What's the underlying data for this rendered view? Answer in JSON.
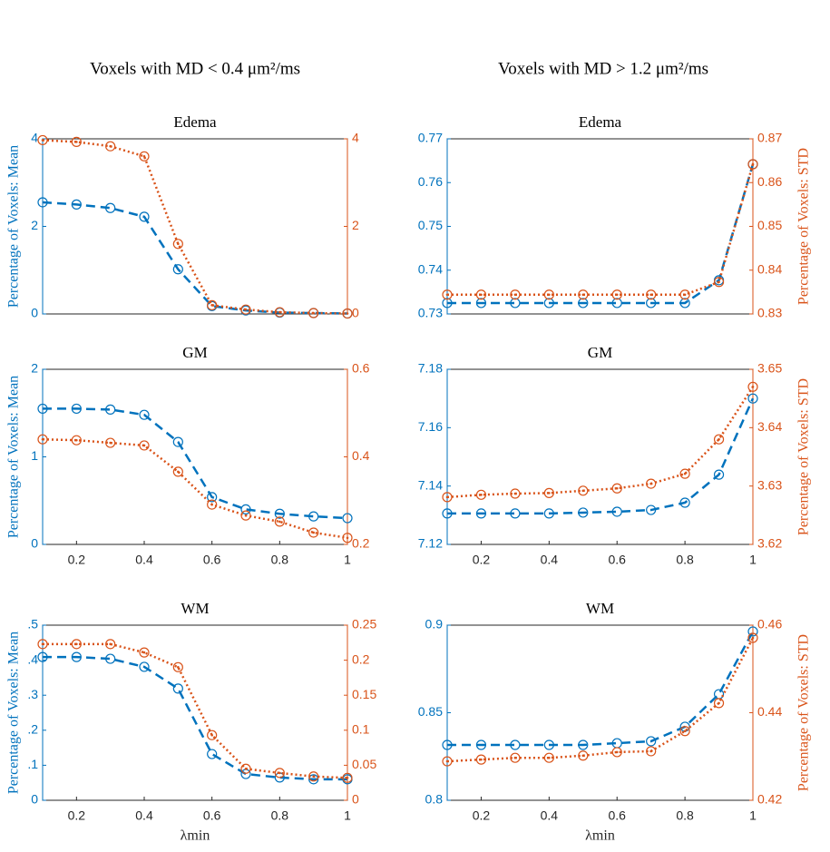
{
  "column_titles": [
    "Voxels with MD < 0.4 μm²/ms",
    "Voxels with MD > 1.2 μm²/ms"
  ],
  "chart_data": [
    {
      "type": "line",
      "title": "Edema",
      "ylabel": "Percentage of Voxels: Mean",
      "x": [
        0.1,
        0.2,
        0.3,
        0.4,
        0.5,
        0.6,
        0.7,
        0.8,
        0.9,
        1
      ],
      "xlim": [
        0.1,
        1
      ],
      "ylim": [
        0,
        4
      ],
      "yticks": [
        0,
        2,
        4
      ],
      "y2lim": [
        0,
        4
      ],
      "y2ticks": [
        0,
        2,
        4
      ],
      "series": [
        {
          "color": "#0072BD",
          "style": "dashed",
          "values": [
            2.55,
            2.5,
            2.42,
            2.22,
            1.02,
            0.18,
            0.08,
            0.03,
            0.02,
            0.01
          ]
        },
        {
          "color": "#D95319",
          "style": "dotted",
          "axis": "y2",
          "values": [
            3.97,
            3.93,
            3.83,
            3.6,
            1.6,
            0.2,
            0.1,
            0.04,
            0.02,
            0.01
          ]
        }
      ]
    },
    {
      "type": "line",
      "title": "Edema",
      "y2label": "Percentage of Voxels: STD",
      "x": [
        0.1,
        0.2,
        0.3,
        0.4,
        0.5,
        0.6,
        0.7,
        0.8,
        0.9,
        1
      ],
      "xlim": [
        0.1,
        1
      ],
      "ylim": [
        0.73,
        0.77
      ],
      "yticks": [
        0.73,
        0.74,
        0.75,
        0.76,
        0.77
      ],
      "y2lim": [
        0.83,
        0.87
      ],
      "y2ticks": [
        0.83,
        0.84,
        0.85,
        0.86,
        0.87
      ],
      "series": [
        {
          "color": "#0072BD",
          "style": "dashed",
          "values": [
            0.7325,
            0.7325,
            0.7325,
            0.7325,
            0.7325,
            0.7325,
            0.7325,
            0.7325,
            0.7377,
            0.7642
          ]
        },
        {
          "color": "#D95319",
          "style": "dotted",
          "axis": "y2",
          "values": [
            0.8344,
            0.8344,
            0.8344,
            0.8344,
            0.8344,
            0.8344,
            0.8344,
            0.8344,
            0.8373,
            0.8642
          ]
        }
      ]
    },
    {
      "type": "line",
      "title": "GM",
      "ylabel": "Percentage of Voxels: Mean",
      "x": [
        0.1,
        0.2,
        0.3,
        0.4,
        0.5,
        0.6,
        0.7,
        0.8,
        0.9,
        1
      ],
      "xlim": [
        0.1,
        1
      ],
      "xticks": [
        0.2,
        0.4,
        0.6,
        0.8,
        1
      ],
      "ylim": [
        0,
        2
      ],
      "yticks": [
        0,
        1,
        2
      ],
      "y2lim": [
        0.2,
        0.6
      ],
      "y2ticks": [
        0.2,
        0.4,
        0.6
      ],
      "series": [
        {
          "color": "#0072BD",
          "style": "dashed",
          "values": [
            1.55,
            1.55,
            1.54,
            1.48,
            1.17,
            0.54,
            0.4,
            0.35,
            0.32,
            0.3
          ]
        },
        {
          "color": "#D95319",
          "style": "dotted",
          "axis": "y2",
          "values": [
            0.44,
            0.438,
            0.432,
            0.426,
            0.366,
            0.291,
            0.266,
            0.252,
            0.227,
            0.215
          ]
        }
      ]
    },
    {
      "type": "line",
      "title": "GM",
      "y2label": "Percentage of Voxels: STD",
      "x": [
        0.1,
        0.2,
        0.3,
        0.4,
        0.5,
        0.6,
        0.7,
        0.8,
        0.9,
        1
      ],
      "xlim": [
        0.1,
        1
      ],
      "xticks": [
        0.2,
        0.4,
        0.6,
        0.8,
        1
      ],
      "ylim": [
        7.12,
        7.18
      ],
      "yticks": [
        7.12,
        7.14,
        7.16,
        7.18
      ],
      "y2lim": [
        3.62,
        3.65
      ],
      "y2ticks": [
        3.62,
        3.63,
        3.64,
        3.65
      ],
      "series": [
        {
          "color": "#0072BD",
          "style": "dashed",
          "values": [
            7.1306,
            7.1306,
            7.1306,
            7.1306,
            7.1309,
            7.1312,
            7.1318,
            7.1343,
            7.1439,
            7.17
          ]
        },
        {
          "color": "#D95319",
          "style": "dotted",
          "axis": "y2",
          "values": [
            3.6281,
            3.6285,
            3.6287,
            3.6288,
            3.6292,
            3.6296,
            3.6304,
            3.6321,
            3.638,
            3.647
          ]
        }
      ]
    },
    {
      "type": "line",
      "title": "WM",
      "ylabel": "Percentage of Voxels: Mean",
      "xlabel": "λmin",
      "x": [
        0.1,
        0.2,
        0.3,
        0.4,
        0.5,
        0.6,
        0.7,
        0.8,
        0.9,
        1
      ],
      "xlim": [
        0.1,
        1
      ],
      "xticks": [
        0.2,
        0.4,
        0.6,
        0.8,
        1
      ],
      "ylim": [
        0,
        0.5
      ],
      "yticks": [
        0,
        {
          "value": 0.1,
          "label": ".1"
        },
        {
          "value": 0.2,
          "label": ".2"
        },
        {
          "value": 0.3,
          "label": ".3"
        },
        {
          "value": 0.4,
          "label": ".4"
        },
        {
          "value": 0.5,
          "label": ".5"
        }
      ],
      "y2lim": [
        0,
        0.25
      ],
      "y2ticks": [
        0,
        0.05,
        0.1,
        0.15,
        0.2,
        0.25
      ],
      "series": [
        {
          "color": "#0072BD",
          "style": "dashed",
          "values": [
            0.409,
            0.409,
            0.404,
            0.381,
            0.319,
            0.132,
            0.075,
            0.065,
            0.06,
            0.06
          ]
        },
        {
          "color": "#D95319",
          "style": "dotted",
          "axis": "y2",
          "values": [
            0.223,
            0.223,
            0.223,
            0.211,
            0.19,
            0.093,
            0.045,
            0.039,
            0.034,
            0.032
          ]
        }
      ]
    },
    {
      "type": "line",
      "title": "WM",
      "y2label": "Percentage of Voxels: STD",
      "xlabel": "λmin",
      "x": [
        0.1,
        0.2,
        0.3,
        0.4,
        0.5,
        0.6,
        0.7,
        0.8,
        0.9,
        1
      ],
      "xlim": [
        0.1,
        1
      ],
      "xticks": [
        0.2,
        0.4,
        0.6,
        0.8,
        1
      ],
      "ylim": [
        0.8,
        0.9
      ],
      "yticks": [
        0.8,
        0.85,
        0.9
      ],
      "y2lim": [
        0.42,
        0.46
      ],
      "y2ticks": [
        0.42,
        0.44,
        0.46
      ],
      "series": [
        {
          "color": "#0072BD",
          "style": "dashed",
          "values": [
            0.8316,
            0.8316,
            0.8316,
            0.8316,
            0.8316,
            0.8326,
            0.8337,
            0.842,
            0.8606,
            0.8964
          ]
        },
        {
          "color": "#D95319",
          "style": "dotted",
          "axis": "y2",
          "values": [
            0.4289,
            0.4293,
            0.4297,
            0.4297,
            0.4302,
            0.431,
            0.4312,
            0.4358,
            0.4422,
            0.4571
          ]
        }
      ]
    }
  ]
}
